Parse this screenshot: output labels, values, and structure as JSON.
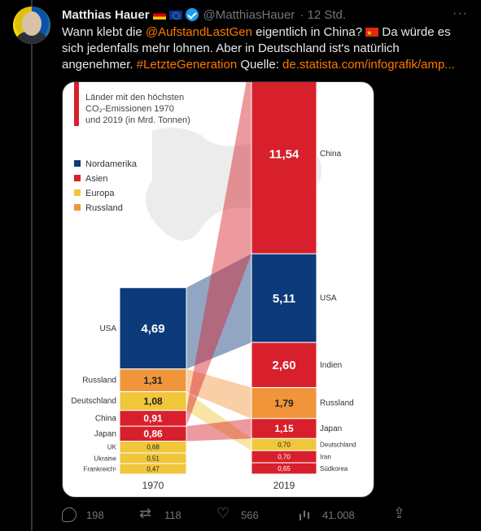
{
  "tweet": {
    "author_name": "Matthias Hauer",
    "handle": "@MatthiasHauer",
    "time": "· 12 Std.",
    "text_1": "Wann klebt die ",
    "mention": "@AufstandLastGen",
    "text_2": " eigentlich in China? ",
    "text_3": " Da würde es sich jedenfalls mehr lohnen. Aber in Deutschland ist's natürlich angenehmer. ",
    "hashtag": "#LetzteGeneration",
    "text_4": " Quelle: ",
    "link": "de.statista.com/infografik/amp..."
  },
  "actions": {
    "replies": "198",
    "retweets": "118",
    "likes": "566",
    "views": "41.008"
  },
  "chart_data": {
    "type": "bar",
    "title": "Länder mit den höchsten CO₂-Emissionen 1970 und 2019 (in Mrd. Tonnen)",
    "title_lines": [
      "Länder mit den höchsten",
      "CO₂-Emissionen 1970",
      "und 2019 (in Mrd. Tonnen)"
    ],
    "legend": [
      {
        "name": "Nordamerika",
        "color": "#0d3a7a"
      },
      {
        "name": "Asien",
        "color": "#d7202b"
      },
      {
        "name": "Europa",
        "color": "#f0c63a"
      },
      {
        "name": "Russland",
        "color": "#f0953a"
      }
    ],
    "categories": [
      "1970",
      "2019"
    ],
    "series": [
      {
        "name": "1970",
        "stack": [
          {
            "country": "USA",
            "value": 4.69,
            "label": "4,69",
            "region": "Nordamerika"
          },
          {
            "country": "Russland",
            "value": 1.31,
            "label": "1,31",
            "region": "Russland"
          },
          {
            "country": "Deutschland",
            "value": 1.08,
            "label": "1,08",
            "region": "Europa"
          },
          {
            "country": "China",
            "value": 0.91,
            "label": "0,91",
            "region": "Asien"
          },
          {
            "country": "Japan",
            "value": 0.86,
            "label": "0,86",
            "region": "Asien"
          },
          {
            "country": "UK",
            "value": 0.68,
            "label": "0,68",
            "region": "Europa"
          },
          {
            "country": "Ukraine",
            "value": 0.51,
            "label": "0,51",
            "region": "Europa"
          },
          {
            "country": "Frankreich¹",
            "value": 0.47,
            "label": "0,47",
            "region": "Europa"
          }
        ]
      },
      {
        "name": "2019",
        "stack": [
          {
            "country": "China",
            "value": 11.54,
            "label": "11,54",
            "region": "Asien"
          },
          {
            "country": "USA",
            "value": 5.11,
            "label": "5,11",
            "region": "Nordamerika"
          },
          {
            "country": "Indien",
            "value": 2.6,
            "label": "2,60",
            "region": "Asien"
          },
          {
            "country": "Russland",
            "value": 1.79,
            "label": "1,79",
            "region": "Russland"
          },
          {
            "country": "Japan",
            "value": 1.15,
            "label": "1,15",
            "region": "Asien"
          },
          {
            "country": "Deutschland",
            "value": 0.7,
            "label": "0,70",
            "region": "Europa"
          },
          {
            "country": "Iran",
            "value": 0.7,
            "label": "0,70",
            "region": "Asien"
          },
          {
            "country": "Südkorea",
            "value": 0.65,
            "label": "0,65",
            "region": "Asien"
          }
        ]
      }
    ]
  }
}
